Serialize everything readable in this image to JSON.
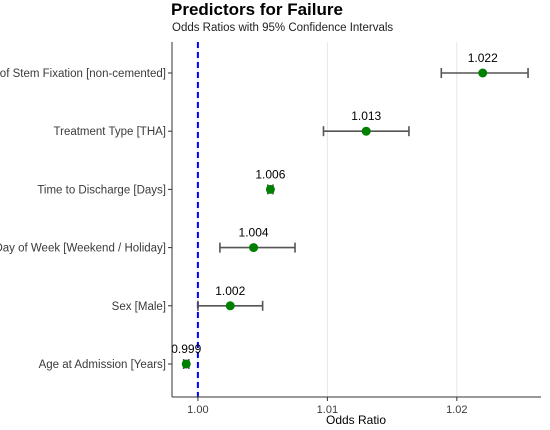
{
  "chart_data": {
    "type": "forest",
    "title": "Predictors for Failure",
    "subtitle": "Odds Ratios with 95% Confidence Intervals",
    "xlabel": "Odds Ratio",
    "ylabel": "",
    "xlim": [
      0.998,
      1.0265
    ],
    "xticks": [
      1.0,
      1.01,
      1.02
    ],
    "xtick_labels": [
      "1.00",
      "1.01",
      "1.02"
    ],
    "reference_line": 1.0,
    "colors": {
      "point": "#008000",
      "ci": "#555555",
      "reference": "#0000ff",
      "grid": "#e6e6e6"
    },
    "grid": true,
    "rows": [
      {
        "label": "Type of Stem Fixation [non-cemented]",
        "or": 1.022,
        "lo": 1.0188,
        "hi": 1.0255,
        "display": "1.022"
      },
      {
        "label": "Treatment Type [THA]",
        "or": 1.013,
        "lo": 1.0097,
        "hi": 1.0163,
        "display": "1.013"
      },
      {
        "label": "Time to Discharge [Days]",
        "or": 1.0056,
        "lo": 1.0054,
        "hi": 1.0058,
        "display": "1.006"
      },
      {
        "label": "Day of Week [Weekend / Holiday]",
        "or": 1.0043,
        "lo": 1.0017,
        "hi": 1.0075,
        "display": "1.004"
      },
      {
        "label": "Sex [Male]",
        "or": 1.0025,
        "lo": 1.0,
        "hi": 1.005,
        "display": "1.002"
      },
      {
        "label": "Age at Admission [Years]",
        "or": 0.9991,
        "lo": 0.9989,
        "hi": 0.9993,
        "display": "0.999"
      }
    ]
  }
}
